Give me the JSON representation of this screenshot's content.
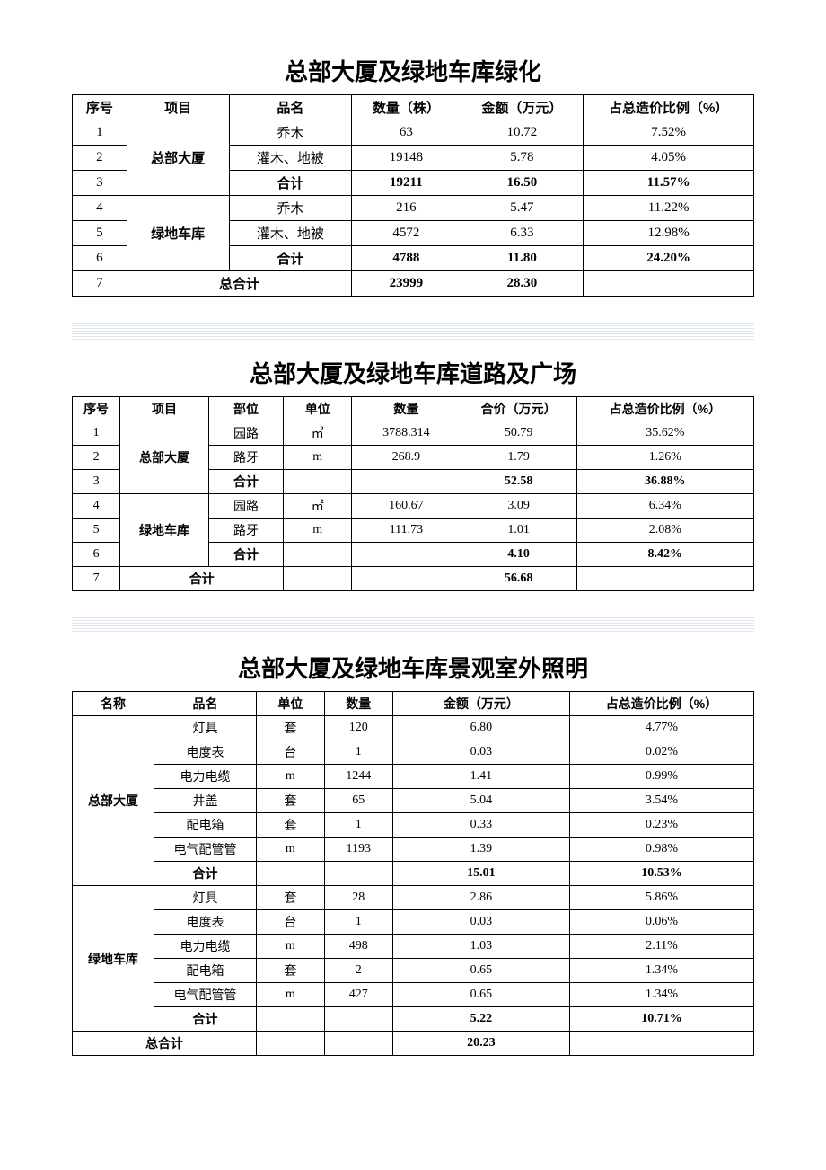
{
  "colors": {
    "border": "#000000",
    "bg": "#ffffff",
    "sep": "#a8b8d8"
  },
  "tables": {
    "greening": {
      "title": "总部大厦及绿地车库绿化",
      "headers": [
        "序号",
        "项目",
        "品名",
        "数量（株）",
        "金额（万元）",
        "占总造价比例（%）"
      ],
      "groups": [
        {
          "project": "总部大厦",
          "rows": [
            {
              "no": "1",
              "name": "乔木",
              "qty": "63",
              "amount": "10.72",
              "ratio": "7.52%",
              "bold": false
            },
            {
              "no": "2",
              "name": "灌木、地被",
              "qty": "19148",
              "amount": "5.78",
              "ratio": "4.05%",
              "bold": false
            },
            {
              "no": "3",
              "name": "合计",
              "qty": "19211",
              "amount": "16.50",
              "ratio": "11.57%",
              "bold": true
            }
          ]
        },
        {
          "project": "绿地车库",
          "rows": [
            {
              "no": "4",
              "name": "乔木",
              "qty": "216",
              "amount": "5.47",
              "ratio": "11.22%",
              "bold": false
            },
            {
              "no": "5",
              "name": "灌木、地被",
              "qty": "4572",
              "amount": "6.33",
              "ratio": "12.98%",
              "bold": false
            },
            {
              "no": "6",
              "name": "合计",
              "qty": "4788",
              "amount": "11.80",
              "ratio": "24.20%",
              "bold": true
            }
          ]
        }
      ],
      "total": {
        "no": "7",
        "label": "总合计",
        "qty": "23999",
        "amount": "28.30",
        "ratio": ""
      }
    },
    "roads": {
      "title": "总部大厦及绿地车库道路及广场",
      "headers": [
        "序号",
        "项目",
        "部位",
        "单位",
        "数量",
        "合价（万元）",
        "占总造价比例（%）"
      ],
      "groups": [
        {
          "project": "总部大厦",
          "rows": [
            {
              "no": "1",
              "part": "园路",
              "unit": "㎡",
              "qty": "3788.314",
              "amount": "50.79",
              "ratio": "35.62%",
              "bold": false
            },
            {
              "no": "2",
              "part": "路牙",
              "unit": "m",
              "qty": "268.9",
              "amount": "1.79",
              "ratio": "1.26%",
              "bold": false
            },
            {
              "no": "3",
              "part": "合计",
              "unit": "",
              "qty": "",
              "amount": "52.58",
              "ratio": "36.88%",
              "bold": true
            }
          ]
        },
        {
          "project": "绿地车库",
          "rows": [
            {
              "no": "4",
              "part": "园路",
              "unit": "㎡",
              "qty": "160.67",
              "amount": "3.09",
              "ratio": "6.34%",
              "bold": false
            },
            {
              "no": "5",
              "part": "路牙",
              "unit": "m",
              "qty": "111.73",
              "amount": "1.01",
              "ratio": "2.08%",
              "bold": false
            },
            {
              "no": "6",
              "part": "合计",
              "unit": "",
              "qty": "",
              "amount": "4.10",
              "ratio": "8.42%",
              "bold": true
            }
          ]
        }
      ],
      "total": {
        "no": "7",
        "label": "合计",
        "unit": "",
        "qty": "",
        "amount": "56.68",
        "ratio": ""
      }
    },
    "lighting": {
      "title": "总部大厦及绿地车库景观室外照明",
      "headers": [
        "名称",
        "品名",
        "单位",
        "数量",
        "金额（万元）",
        "占总造价比例（%）"
      ],
      "groups": [
        {
          "project": "总部大厦",
          "rows": [
            {
              "name": "灯具",
              "unit": "套",
              "qty": "120",
              "amount": "6.80",
              "ratio": "4.77%",
              "bold": false
            },
            {
              "name": "电度表",
              "unit": "台",
              "qty": "1",
              "amount": "0.03",
              "ratio": "0.02%",
              "bold": false
            },
            {
              "name": "电力电缆",
              "unit": "m",
              "qty": "1244",
              "amount": "1.41",
              "ratio": "0.99%",
              "bold": false
            },
            {
              "name": "井盖",
              "unit": "套",
              "qty": "65",
              "amount": "5.04",
              "ratio": "3.54%",
              "bold": false
            },
            {
              "name": "配电箱",
              "unit": "套",
              "qty": "1",
              "amount": "0.33",
              "ratio": "0.23%",
              "bold": false
            },
            {
              "name": "电气配管管",
              "unit": "m",
              "qty": "1193",
              "amount": "1.39",
              "ratio": "0.98%",
              "bold": false
            },
            {
              "name": "合计",
              "unit": "",
              "qty": "",
              "amount": "15.01",
              "ratio": "10.53%",
              "bold": true
            }
          ]
        },
        {
          "project": "绿地车库",
          "rows": [
            {
              "name": "灯具",
              "unit": "套",
              "qty": "28",
              "amount": "2.86",
              "ratio": "5.86%",
              "bold": false
            },
            {
              "name": "电度表",
              "unit": "台",
              "qty": "1",
              "amount": "0.03",
              "ratio": "0.06%",
              "bold": false
            },
            {
              "name": "电力电缆",
              "unit": "m",
              "qty": "498",
              "amount": "1.03",
              "ratio": "2.11%",
              "bold": false
            },
            {
              "name": "配电箱",
              "unit": "套",
              "qty": "2",
              "amount": "0.65",
              "ratio": "1.34%",
              "bold": false
            },
            {
              "name": "电气配管管",
              "unit": "m",
              "qty": "427",
              "amount": "0.65",
              "ratio": "1.34%",
              "bold": false
            },
            {
              "name": "合计",
              "unit": "",
              "qty": "",
              "amount": "5.22",
              "ratio": "10.71%",
              "bold": true
            }
          ]
        }
      ],
      "total": {
        "label": "总合计",
        "unit": "",
        "qty": "",
        "amount": "20.23",
        "ratio": ""
      }
    }
  }
}
